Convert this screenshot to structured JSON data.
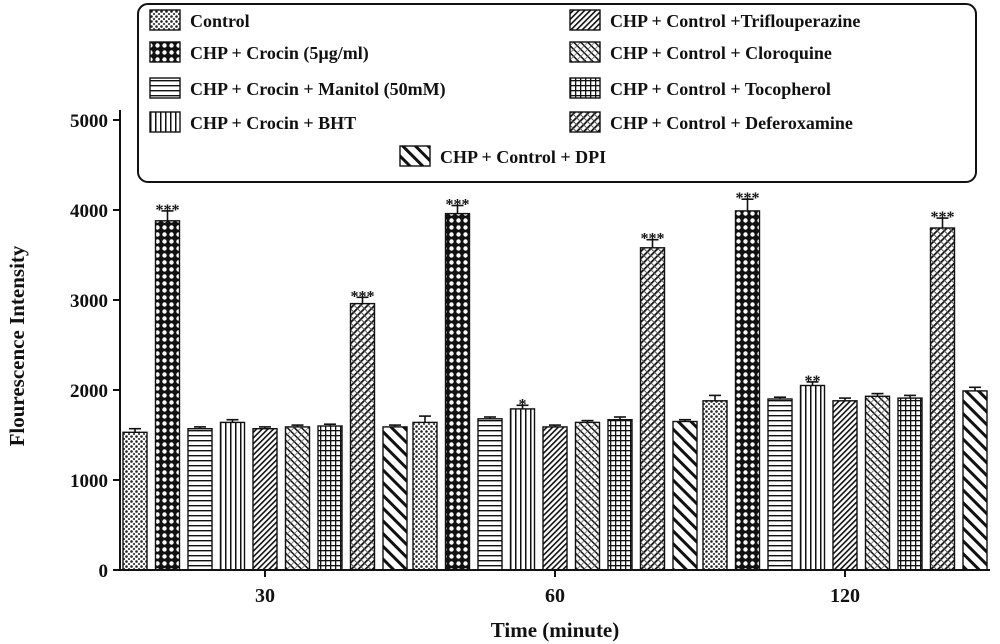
{
  "chart_data": {
    "type": "bar",
    "title": "",
    "xlabel": "Time (minute)",
    "ylabel": "Flourescence Intensity",
    "ylim": [
      0,
      5000
    ],
    "yticks": [
      0,
      1000,
      2000,
      3000,
      4000,
      5000
    ],
    "grid": false,
    "legend_position": "top",
    "categories": [
      "30",
      "60",
      "120"
    ],
    "series": [
      {
        "name": "Control",
        "pattern": "dots",
        "values": [
          1530,
          1640,
          1880
        ],
        "errors": [
          40,
          70,
          60
        ],
        "annotations": [
          "",
          "",
          ""
        ]
      },
      {
        "name": "CHP + Crocin (5µg/ml)",
        "pattern": "checker",
        "values": [
          3880,
          3960,
          3990
        ],
        "errors": [
          110,
          90,
          130
        ],
        "annotations": [
          "***",
          "***",
          "***"
        ]
      },
      {
        "name": "CHP + Crocin + Manitol (50mM)",
        "pattern": "hlines",
        "values": [
          1570,
          1680,
          1900
        ],
        "errors": [
          20,
          20,
          20
        ],
        "annotations": [
          "",
          "",
          ""
        ]
      },
      {
        "name": "CHP + Crocin + BHT",
        "pattern": "vlines",
        "values": [
          1640,
          1790,
          2050
        ],
        "errors": [
          30,
          40,
          40
        ],
        "annotations": [
          "",
          "*",
          "**"
        ]
      },
      {
        "name": "CHP + Control +Triflouperazine",
        "pattern": "diag-fine",
        "values": [
          1570,
          1590,
          1880
        ],
        "errors": [
          20,
          20,
          30
        ],
        "annotations": [
          "",
          "",
          ""
        ]
      },
      {
        "name": "CHP + Control + Cloroquine",
        "pattern": "diag-hatch",
        "values": [
          1590,
          1640,
          1930
        ],
        "errors": [
          20,
          20,
          30
        ],
        "annotations": [
          "",
          "",
          ""
        ]
      },
      {
        "name": "CHP + Control + Tocopherol",
        "pattern": "grid",
        "values": [
          1600,
          1670,
          1910
        ],
        "errors": [
          20,
          30,
          30
        ],
        "annotations": [
          "",
          "",
          ""
        ]
      },
      {
        "name": "CHP + Control + Deferoxamine",
        "pattern": "crosshatch",
        "values": [
          2960,
          3580,
          3800
        ],
        "errors": [
          70,
          90,
          110
        ],
        "annotations": [
          "***",
          "***",
          "***"
        ]
      },
      {
        "name": "CHP + Control + DPI",
        "pattern": "diag-wide",
        "values": [
          1590,
          1650,
          1990
        ],
        "errors": [
          20,
          20,
          40
        ],
        "annotations": [
          "",
          "",
          ""
        ]
      }
    ]
  }
}
